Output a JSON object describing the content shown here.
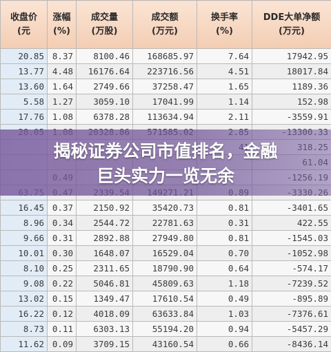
{
  "table": {
    "headers": [
      {
        "line1": "收盘价",
        "line2": "(元"
      },
      {
        "line1": "涨幅",
        "line2": "(%)"
      },
      {
        "line1": "成交量",
        "line2": "(万股)"
      },
      {
        "line1": "成交额",
        "line2": "(万元)"
      },
      {
        "line1": "换手率",
        "line2": "(%)"
      },
      {
        "line1": "DDE大单净额",
        "line2": "(万元)"
      }
    ],
    "rows": [
      [
        "20.85",
        "8.37",
        "8100.46",
        "168685.97",
        "7.64",
        "17942.95"
      ],
      [
        "13.77",
        "4.48",
        "16176.64",
        "223716.56",
        "4.51",
        "18017.84"
      ],
      [
        "13.60",
        "1.64",
        "2749.66",
        "37258.47",
        "1.65",
        "1189.36"
      ],
      [
        "5.58",
        "1.27",
        "3059.10",
        "17041.99",
        "1.14",
        "152.98"
      ],
      [
        "17.76",
        "1.08",
        "6378.28",
        "113634.94",
        "2.11",
        "-3559.91"
      ],
      [
        "28.05",
        "1.08",
        "20328.86",
        "571585.02",
        "2.85",
        "-13300.33"
      ],
      [
        "",
        "",
        "",
        "",
        "41",
        "318.25"
      ],
      [
        "",
        "",
        "",
        "",
        "",
        "61.04"
      ],
      [
        "",
        "0.49",
        "",
        "",
        "",
        "-1256.19"
      ],
      [
        "63.75",
        "0.47",
        "2339.54",
        "149271.21",
        "0.89",
        "-3330.26"
      ],
      [
        "16.45",
        "0.37",
        "2150.92",
        "35420.73",
        "0.81",
        "-3401.65"
      ],
      [
        "8.96",
        "0.34",
        "2544.72",
        "22781.63",
        "0.31",
        "422.55"
      ],
      [
        "9.66",
        "0.31",
        "2892.88",
        "27949.80",
        "0.81",
        "-1545.03"
      ],
      [
        "10.01",
        "0.30",
        "1648.07",
        "16529.04",
        "0.70",
        "-1052.98"
      ],
      [
        "8.10",
        "0.25",
        "2311.65",
        "18790.90",
        "0.64",
        "-574.17"
      ],
      [
        "9.08",
        "0.22",
        "5046.81",
        "45809.63",
        "1.18",
        "-7239.52"
      ],
      [
        "13.02",
        "0.15",
        "1349.47",
        "17610.54",
        "0.49",
        "-895.89"
      ],
      [
        "16.22",
        "0.12",
        "4018.09",
        "63633.84",
        "1.03",
        "-7376.61"
      ],
      [
        "8.73",
        "0.11",
        "6303.13",
        "55194.20",
        "0.94",
        "-5457.29"
      ],
      [
        "11.62",
        "0.09",
        "3709.15",
        "43160.54",
        "0.66",
        "-8436.14"
      ]
    ]
  },
  "overlay": {
    "line1": "揭秘证券公司市值排名，金融",
    "line2": "巨头实力一览无余"
  }
}
